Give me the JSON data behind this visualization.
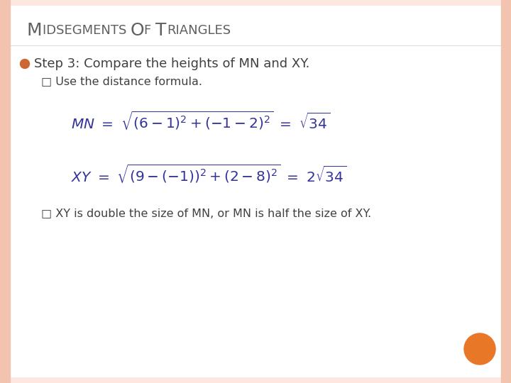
{
  "bg_color": "#ffffff",
  "border_color": "#f2c4b0",
  "slide_bg": "#fce8e0",
  "bullet_color": "#cc6633",
  "step_text": "Step 3: Compare the heights of MN and XY.",
  "sub_bullet1": "Use the distance formula.",
  "sub_bullet2": "XY is double the size of MN, or MN is half the size of XY.",
  "orange_dot_color": "#e87828",
  "text_color": "#404040",
  "title_color": "#606060",
  "formula_color": "#333399",
  "title_parts": [
    [
      "M",
      18
    ],
    [
      "IDSEGMENTS ",
      13
    ],
    [
      "O",
      18
    ],
    [
      "F ",
      13
    ],
    [
      "T",
      18
    ],
    [
      "RIANGLES",
      13
    ]
  ]
}
